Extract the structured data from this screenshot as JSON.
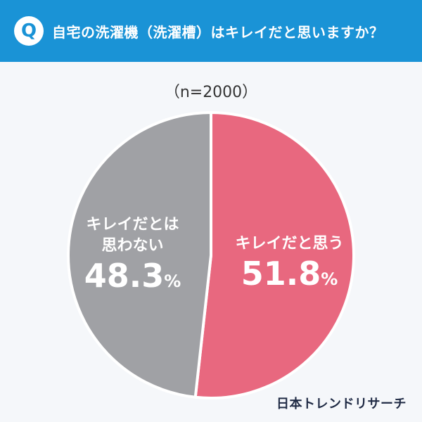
{
  "header": {
    "badge": "Q",
    "question": "自宅の洗濯機（洗濯槽）はキレイだと思いますか？"
  },
  "sample_label": "（n=2000）",
  "chart_data": {
    "type": "pie",
    "categories": [
      "キレイだと思う",
      "キレイだとは思わない"
    ],
    "values": [
      51.8,
      48.3
    ],
    "unit": "%",
    "colors": [
      "#e8687f",
      "#a0a1a5"
    ],
    "slice_labels": [
      {
        "lines": [
          "キレイだと思う"
        ],
        "value": "51.8",
        "unit": "%"
      },
      {
        "lines": [
          "キレイだとは",
          "思わない"
        ],
        "value": "48.3",
        "unit": "%"
      }
    ]
  },
  "brand": "日本トレンドリサーチ"
}
